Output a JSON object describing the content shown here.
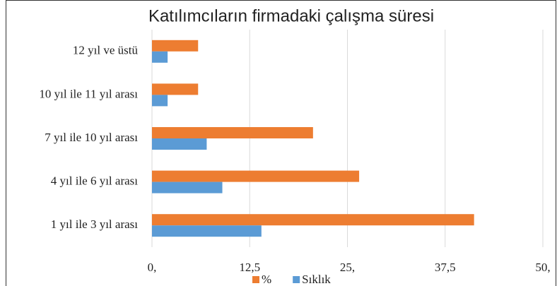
{
  "chart_data": {
    "type": "hbar",
    "title": "Katılımcıların  firmadaki çalışma süresi",
    "categories": [
      "12 yıl ve üstü",
      "10 yıl ile 11 yıl arası",
      "7 yıl ile 10 yıl arası",
      "4 yıl ile 6 yıl arası",
      "1 yıl  ile 3 yıl arası"
    ],
    "series": [
      {
        "name": "%",
        "color": "#ed7d31",
        "values": [
          5.9,
          5.9,
          20.6,
          26.5,
          41.2
        ]
      },
      {
        "name": "Sıklık",
        "color": "#5b9bd5",
        "values": [
          2,
          2,
          7,
          9,
          14
        ]
      }
    ],
    "xlim": [
      0,
      50
    ],
    "xticks": [
      {
        "value": 0,
        "label": "0,"
      },
      {
        "value": 12.5,
        "label": "12,5"
      },
      {
        "value": 25,
        "label": "25,"
      },
      {
        "value": 37.5,
        "label": "37,5"
      },
      {
        "value": 50,
        "label": "50,"
      }
    ],
    "grid": true,
    "legend": "bottom"
  }
}
